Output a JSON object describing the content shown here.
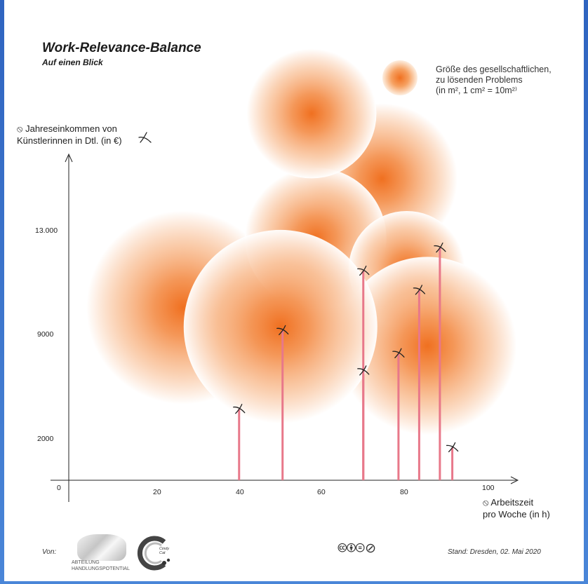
{
  "chart_data": {
    "type": "scatter",
    "title": "Work-Relevance-Balance",
    "subtitle": "Auf einen Blick",
    "legend": {
      "text_lines": [
        "Größe des gesellschaftlichen,",
        "zu lösenden Problems"
      ],
      "unit_line": "(in m², 1 cm² = 10m²⁾",
      "placement": "top-right"
    },
    "ylabel_lines": [
      "⦸ Jahreseinkommen von",
      "Künstlerinnen in Dtl. (in €)"
    ],
    "xlabel_lines": [
      "⦸ Arbeitszeit",
      "pro Woche (in h)"
    ],
    "x_ticks": [
      "0",
      "20",
      "40",
      "60",
      "80",
      "100"
    ],
    "y_ticks": [
      "2000",
      "9000",
      "13.000"
    ],
    "points": [
      {
        "x": 42.5,
        "y": 3700
      },
      {
        "x": 53,
        "y": 7800
      },
      {
        "x": 72.5,
        "y": 10900
      },
      {
        "x": 72.5,
        "y": 5700
      },
      {
        "x": 81,
        "y": 6600
      },
      {
        "x": 86,
        "y": 9900
      },
      {
        "x": 91,
        "y": 12100
      },
      {
        "x": 94,
        "y": 1700
      }
    ],
    "bubbles": [
      {
        "x": 29,
        "y": 9000,
        "size": 1.0
      },
      {
        "x": 77,
        "y": 15700,
        "size": 0.78
      },
      {
        "x": 61,
        "y": 12600,
        "size": 0.73
      },
      {
        "x": 83,
        "y": 11000,
        "size": 0.6
      },
      {
        "x": 88,
        "y": 7000,
        "size": 0.92
      },
      {
        "x": 52.5,
        "y": 8000,
        "size": 1.0
      },
      {
        "x": 60,
        "y": 19100,
        "size": 0.67
      }
    ],
    "colors": {
      "bubble": "#f07020",
      "stem": "#e8788a",
      "axis": "#222222"
    }
  },
  "footer": {
    "von": "Von:",
    "logo1_lines": [
      "ABTEILUNG",
      "HANDLUNGSPOTENTIAL"
    ],
    "logo2_lines": [
      "Cindy",
      "Cat"
    ],
    "cc_icons": "🅭🅯⊜⊘",
    "stand": "Stand: Dresden, 02. Mai 2020"
  }
}
